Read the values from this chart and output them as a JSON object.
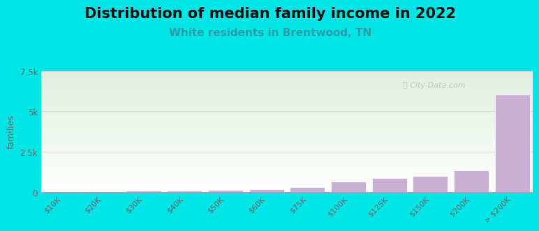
{
  "title": "Distribution of median family income in 2022",
  "subtitle": "White residents in Brentwood, TN",
  "categories": [
    "$10K",
    "$20K",
    "$30K",
    "$40K",
    "$50K",
    "$60K",
    "$75K",
    "$100K",
    "$125K",
    "$150K",
    "$200K",
    "> $200K"
  ],
  "values": [
    45,
    50,
    75,
    80,
    110,
    160,
    310,
    660,
    870,
    1000,
    1350,
    6050
  ],
  "bar_color": "#c9afd4",
  "background_outer": "#00e5e5",
  "title_fontsize": 15,
  "subtitle_fontsize": 11,
  "title_color": "#111111",
  "subtitle_color": "#2a9da8",
  "ylabel": "families",
  "ylim": [
    0,
    7500
  ],
  "yticks": [
    0,
    2500,
    5000,
    7500
  ],
  "ytick_labels": [
    "0",
    "2.5k",
    "5k",
    "7.5k"
  ],
  "grid_color": "#cccccc",
  "watermark": "ⓘ City-Data.com"
}
